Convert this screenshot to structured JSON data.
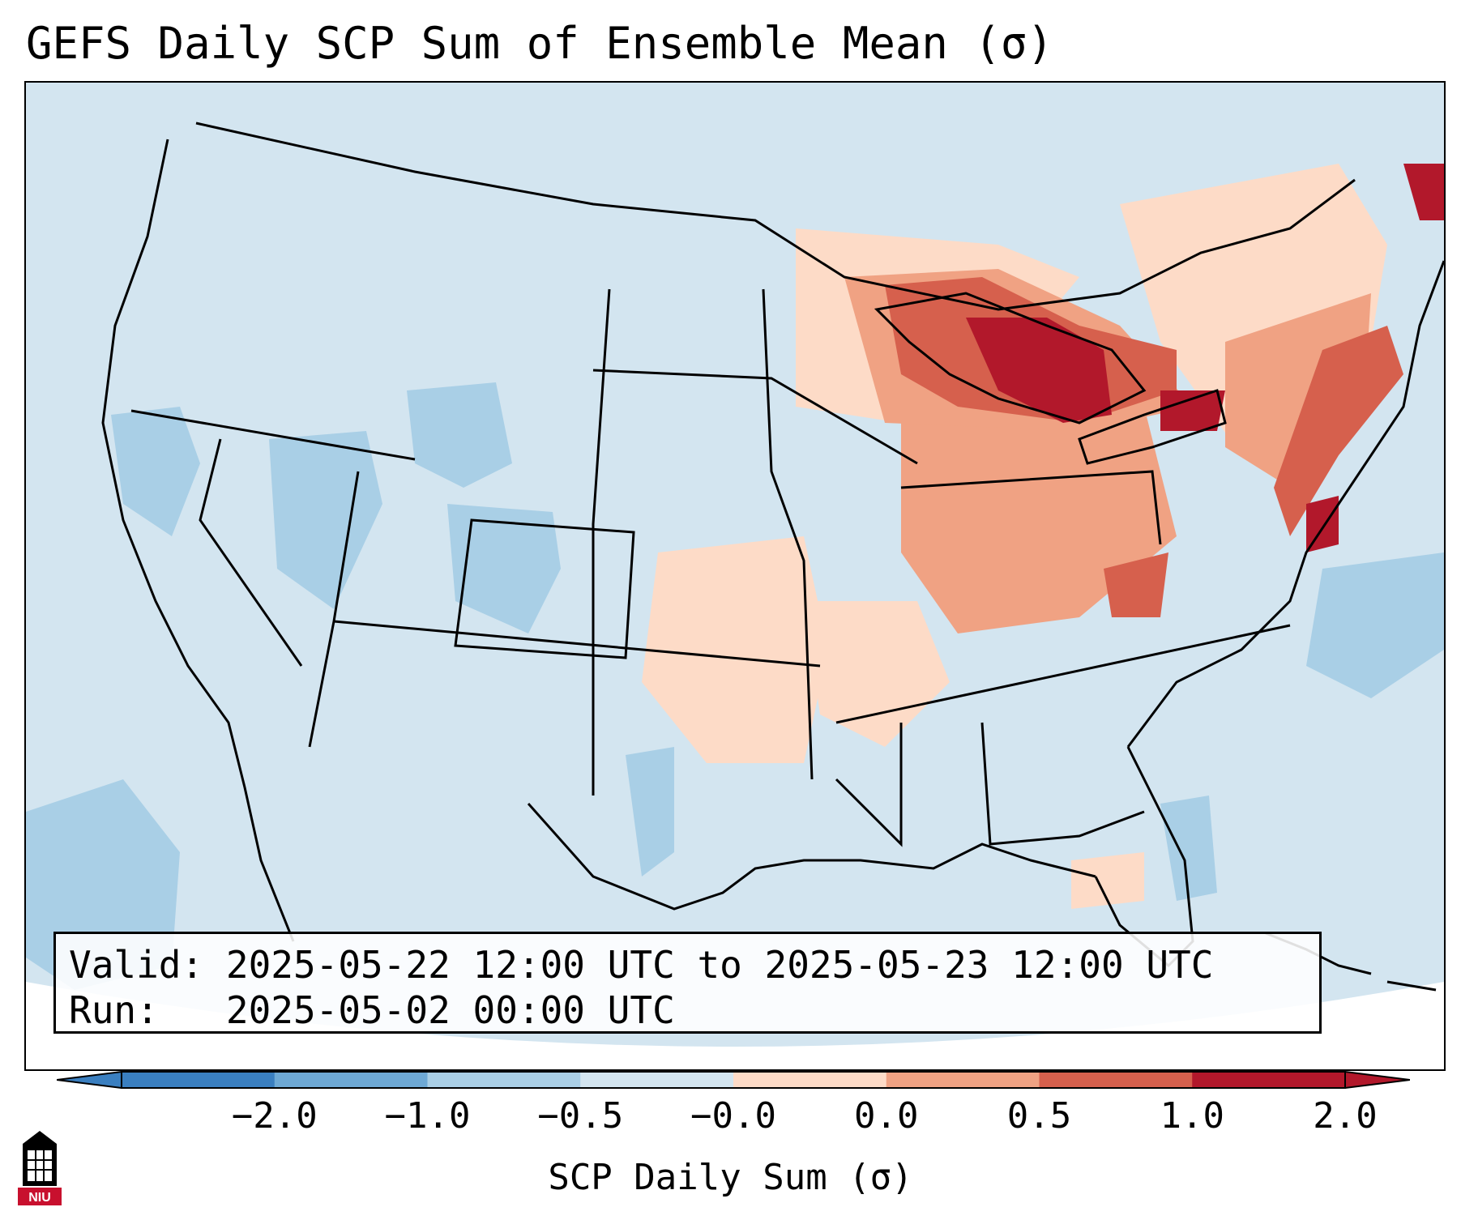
{
  "title": "GEFS Daily SCP Sum of Ensemble Mean (σ)",
  "info": {
    "valid_label": "Valid:",
    "valid_value": "2025-05-22 12:00 UTC to 2025-05-23 12:00 UTC",
    "run_label": "Run:",
    "run_value": "2025-05-02 00:00 UTC"
  },
  "colorbar": {
    "label": "SCP Daily Sum (σ)",
    "ticks": [
      "−2.0",
      "−1.0",
      "−0.5",
      "−0.0",
      "0.0",
      "0.5",
      "1.0",
      "2.0"
    ],
    "colors": [
      "#3a7fc0",
      "#6ea9d5",
      "#aacfe6",
      "#d3e5f0",
      "#fddbc7",
      "#f0a283",
      "#d6604d",
      "#b2182b"
    ]
  },
  "map": {
    "background_color": "#d3e5f0",
    "ocean_outside_color": "#ffffff",
    "land_outline_color": "#000000"
  },
  "logo": {
    "text": "NIU",
    "icon": "university-tower-icon",
    "color": "#c8102e"
  }
}
